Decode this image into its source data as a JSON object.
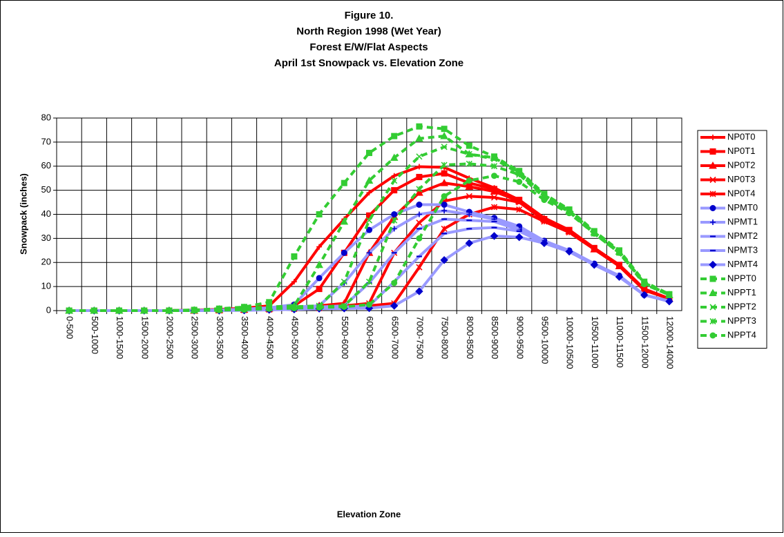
{
  "chart_data": {
    "type": "line",
    "title": [
      "Figure 10.",
      "North Region 1998 (Wet Year)",
      "Forest E/W/Flat Aspects",
      "April 1st Snowpack vs. Elevation Zone"
    ],
    "x_label": "Elevation Zone",
    "y_label": "Snowpack (inches)",
    "categories": [
      "0-500",
      "500-1000",
      "1000-1500",
      "1500-2000",
      "2000-2500",
      "2500-3000",
      "3000-3500",
      "3500-4000",
      "4000-4500",
      "4500-5000",
      "5000-5500",
      "5500-6000",
      "6000-6500",
      "6500-7000",
      "7000-7500",
      "7500-8000",
      "8000-8500",
      "8500-9000",
      "9000-9500",
      "9500-10000",
      "10000-10500",
      "10500-11000",
      "11000-11500",
      "11500-12000",
      "12000-14000"
    ],
    "ylim": [
      0,
      80
    ],
    "yticks": [
      0,
      10,
      20,
      30,
      40,
      50,
      60,
      70,
      80
    ],
    "grid": true,
    "legend": "right",
    "series": [
      {
        "name": "NP0T0",
        "color": "#ff0000",
        "marker": "plus",
        "marker_color": "#ff0000",
        "line_style": "solid",
        "values": [
          0,
          0,
          0,
          0,
          0,
          0.2,
          0.5,
          1,
          2,
          12,
          26.5,
          38,
          49,
          56,
          59.8,
          59.5,
          55,
          51,
          46,
          38.5,
          33.5,
          26,
          19,
          9,
          5
        ]
      },
      {
        "name": "NP0T1",
        "color": "#ff0000",
        "marker": "square",
        "marker_color": "#ff0000",
        "line_style": "solid",
        "values": [
          0,
          0,
          0,
          0,
          0,
          0.1,
          0.3,
          0.6,
          1,
          2,
          9,
          24,
          39.5,
          50,
          55.5,
          57,
          53,
          50.5,
          46,
          38,
          33.5,
          26,
          19,
          9,
          5
        ]
      },
      {
        "name": "NP0T2",
        "color": "#ff0000",
        "marker": "triangle",
        "marker_color": "#ff0000",
        "line_style": "solid",
        "values": [
          0,
          0,
          0,
          0,
          0,
          0,
          0.2,
          0.4,
          0.8,
          1.2,
          2,
          3,
          24,
          39,
          49,
          53,
          51.5,
          49.5,
          45.5,
          38,
          33,
          25.5,
          18.5,
          8.5,
          5
        ]
      },
      {
        "name": "NP0T3",
        "color": "#ff0000",
        "marker": "x",
        "marker_color": "#ff0000",
        "line_style": "solid",
        "values": [
          0,
          0,
          0,
          0,
          0,
          0,
          0.1,
          0.3,
          0.6,
          1,
          1.5,
          2,
          3,
          24,
          36.5,
          45.5,
          47.5,
          47,
          45,
          37.5,
          33,
          25.5,
          18.5,
          8.5,
          5
        ]
      },
      {
        "name": "NP0T4",
        "color": "#ff0000",
        "marker": "star",
        "marker_color": "#ff0000",
        "line_style": "solid",
        "values": [
          0,
          0,
          0,
          0,
          0,
          0,
          0.1,
          0.2,
          0.4,
          0.7,
          1,
          1.5,
          2,
          3,
          18,
          34,
          40,
          43,
          42,
          37,
          32.5,
          25.5,
          18.5,
          8.5,
          5
        ]
      },
      {
        "name": "NPMT0",
        "color": "#9999ff",
        "marker": "circle",
        "marker_color": "#0000cc",
        "line_style": "solid",
        "values": [
          0,
          0,
          0,
          0,
          0,
          0.1,
          0.3,
          0.6,
          1.2,
          2.5,
          13.5,
          24,
          33.5,
          40,
          44,
          44,
          41,
          38.5,
          35,
          29,
          25,
          19.5,
          14.5,
          6.5,
          4
        ]
      },
      {
        "name": "NPMT1",
        "color": "#9999ff",
        "marker": "plus",
        "marker_color": "#0000cc",
        "line_style": "solid",
        "values": [
          0,
          0,
          0,
          0,
          0,
          0,
          0.2,
          0.4,
          0.8,
          1.5,
          2,
          11.5,
          24,
          34,
          40,
          41.5,
          40,
          38,
          34,
          28.5,
          25,
          19.5,
          14.5,
          6.5,
          4
        ]
      },
      {
        "name": "NPMT2",
        "color": "#9999ff",
        "marker": "dash",
        "marker_color": "#0000cc",
        "line_style": "solid",
        "values": [
          0,
          0,
          0,
          0,
          0,
          0,
          0.1,
          0.3,
          0.5,
          1,
          1.5,
          2,
          11.5,
          24,
          34,
          38,
          37.5,
          37,
          33.5,
          29,
          24.5,
          19,
          14,
          6.5,
          4
        ]
      },
      {
        "name": "NPMT3",
        "color": "#9999ff",
        "marker": "dash",
        "marker_color": "#0000cc",
        "line_style": "solid",
        "values": [
          0,
          0,
          0,
          0,
          0,
          0,
          0.1,
          0.2,
          0.4,
          0.7,
          1,
          1.5,
          2,
          12,
          22.5,
          32,
          34,
          34.5,
          33,
          28,
          24.5,
          19,
          14,
          6.5,
          3.8
        ]
      },
      {
        "name": "NPMT4",
        "color": "#9999ff",
        "marker": "diamond",
        "marker_color": "#0000cc",
        "line_style": "solid",
        "values": [
          0,
          0,
          0,
          0,
          0,
          0,
          0,
          0.1,
          0.3,
          0.5,
          0.8,
          0.9,
          1,
          2,
          8,
          21,
          28,
          31,
          30.5,
          28,
          24.5,
          19,
          14,
          6.5,
          3.8
        ]
      },
      {
        "name": "NPPT0",
        "color": "#33cc33",
        "marker": "square",
        "marker_color": "#33cc33",
        "line_style": "dashed",
        "values": [
          0,
          0,
          0,
          0,
          0,
          0.3,
          0.8,
          1.5,
          3.5,
          22.5,
          40,
          53,
          65.5,
          72.5,
          76.5,
          75.5,
          68.5,
          64,
          58,
          48.5,
          42,
          33,
          25,
          12,
          6.8
        ]
      },
      {
        "name": "NPPT1",
        "color": "#33cc33",
        "marker": "triangle",
        "marker_color": "#33cc33",
        "line_style": "dashed",
        "values": [
          0,
          0,
          0,
          0,
          0,
          0.2,
          0.6,
          1.2,
          1.5,
          2,
          19,
          37,
          54,
          63.5,
          71.5,
          72.5,
          65,
          63.5,
          57.5,
          48,
          41.5,
          32.5,
          24.5,
          11.5,
          6.5
        ]
      },
      {
        "name": "NPPT2",
        "color": "#33cc33",
        "marker": "x",
        "marker_color": "#33cc33",
        "line_style": "dashed",
        "values": [
          0,
          0,
          0,
          0,
          0,
          0.1,
          0.4,
          0.8,
          1.2,
          1.6,
          2,
          12,
          37.5,
          54,
          64,
          68,
          65,
          63,
          57,
          47.5,
          41,
          32.5,
          24.5,
          11.5,
          6.5
        ]
      },
      {
        "name": "NPPT3",
        "color": "#33cc33",
        "marker": "star",
        "marker_color": "#33cc33",
        "line_style": "dashed",
        "values": [
          0,
          0,
          0,
          0,
          0,
          0.1,
          0.3,
          0.6,
          1,
          1.3,
          1.6,
          2,
          12,
          37.5,
          50.5,
          60.5,
          61,
          60,
          56.5,
          47,
          41,
          32,
          24,
          11.5,
          6.5
        ]
      },
      {
        "name": "NPPT4",
        "color": "#33cc33",
        "marker": "circle",
        "marker_color": "#33cc33",
        "line_style": "dashed",
        "values": [
          0,
          0,
          0,
          0,
          0,
          0,
          0.2,
          0.4,
          0.8,
          1,
          1.3,
          1.6,
          2.5,
          11.5,
          30,
          47.5,
          54,
          56,
          53.5,
          46,
          40.5,
          32,
          24,
          11,
          6.5
        ]
      }
    ]
  }
}
